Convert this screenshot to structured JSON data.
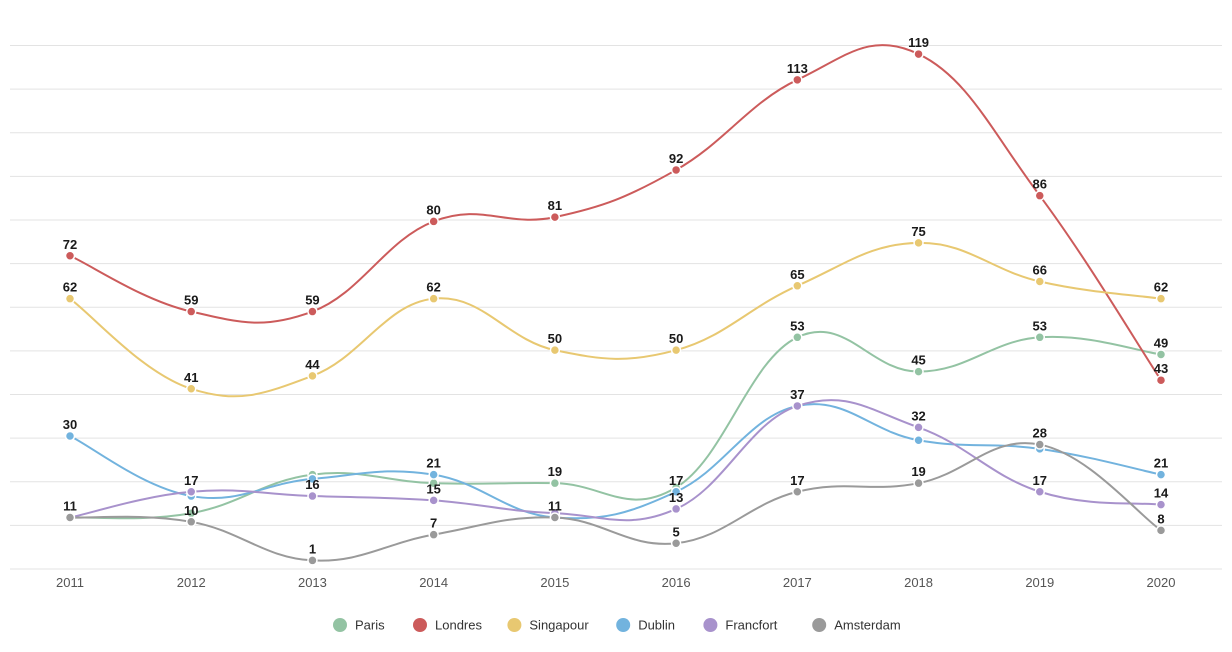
{
  "chart_data": {
    "type": "line",
    "title": "",
    "xlabel": "",
    "ylabel": "",
    "categories": [
      "2011",
      "2012",
      "2013",
      "2014",
      "2015",
      "2016",
      "2017",
      "2018",
      "2019",
      "2020"
    ],
    "ylim": [
      -1,
      121
    ],
    "grid": true,
    "legend_position": "bottom-center",
    "smooth": true,
    "series": [
      {
        "name": "Paris",
        "color": "#93c3a3",
        "values": [
          11,
          12,
          21,
          19,
          19,
          18,
          53,
          45,
          53,
          49
        ],
        "labels": [
          "",
          "",
          "",
          "",
          "19",
          "",
          "53",
          "45",
          "53",
          "49"
        ]
      },
      {
        "name": "Londres",
        "color": "#cc5b5b",
        "values": [
          72,
          59,
          59,
          80,
          81,
          92,
          113,
          119,
          86,
          43
        ],
        "labels": [
          "72",
          "59",
          "59",
          "80",
          "81",
          "92",
          "113",
          "119",
          "86",
          "43"
        ]
      },
      {
        "name": "Singapour",
        "color": "#e8c871",
        "values": [
          62,
          41,
          44,
          62,
          50,
          50,
          65,
          75,
          66,
          62
        ],
        "labels": [
          "62",
          "41",
          "44",
          "62",
          "50",
          "50",
          "65",
          "75",
          "66",
          "62"
        ]
      },
      {
        "name": "Dublin",
        "color": "#72b3de",
        "values": [
          30,
          16,
          20,
          21,
          11,
          17,
          37,
          29,
          27,
          21
        ],
        "labels": [
          "30",
          "",
          "",
          "21",
          "",
          "17",
          "",
          "",
          "",
          "21"
        ]
      },
      {
        "name": "Francfort",
        "color": "#a892cc",
        "values": [
          11,
          17,
          16,
          15,
          12,
          13,
          37,
          32,
          17,
          14
        ],
        "labels": [
          "",
          "17",
          "16",
          "15",
          "",
          "13",
          "37",
          "32",
          "17",
          "14"
        ]
      },
      {
        "name": "Amsterdam",
        "color": "#9a9a9a",
        "values": [
          11,
          10,
          1,
          7,
          11,
          5,
          17,
          19,
          28,
          8
        ],
        "labels": [
          "11",
          "10",
          "1",
          "7",
          "11",
          "5",
          "17",
          "19",
          "28",
          "8"
        ]
      }
    ]
  }
}
